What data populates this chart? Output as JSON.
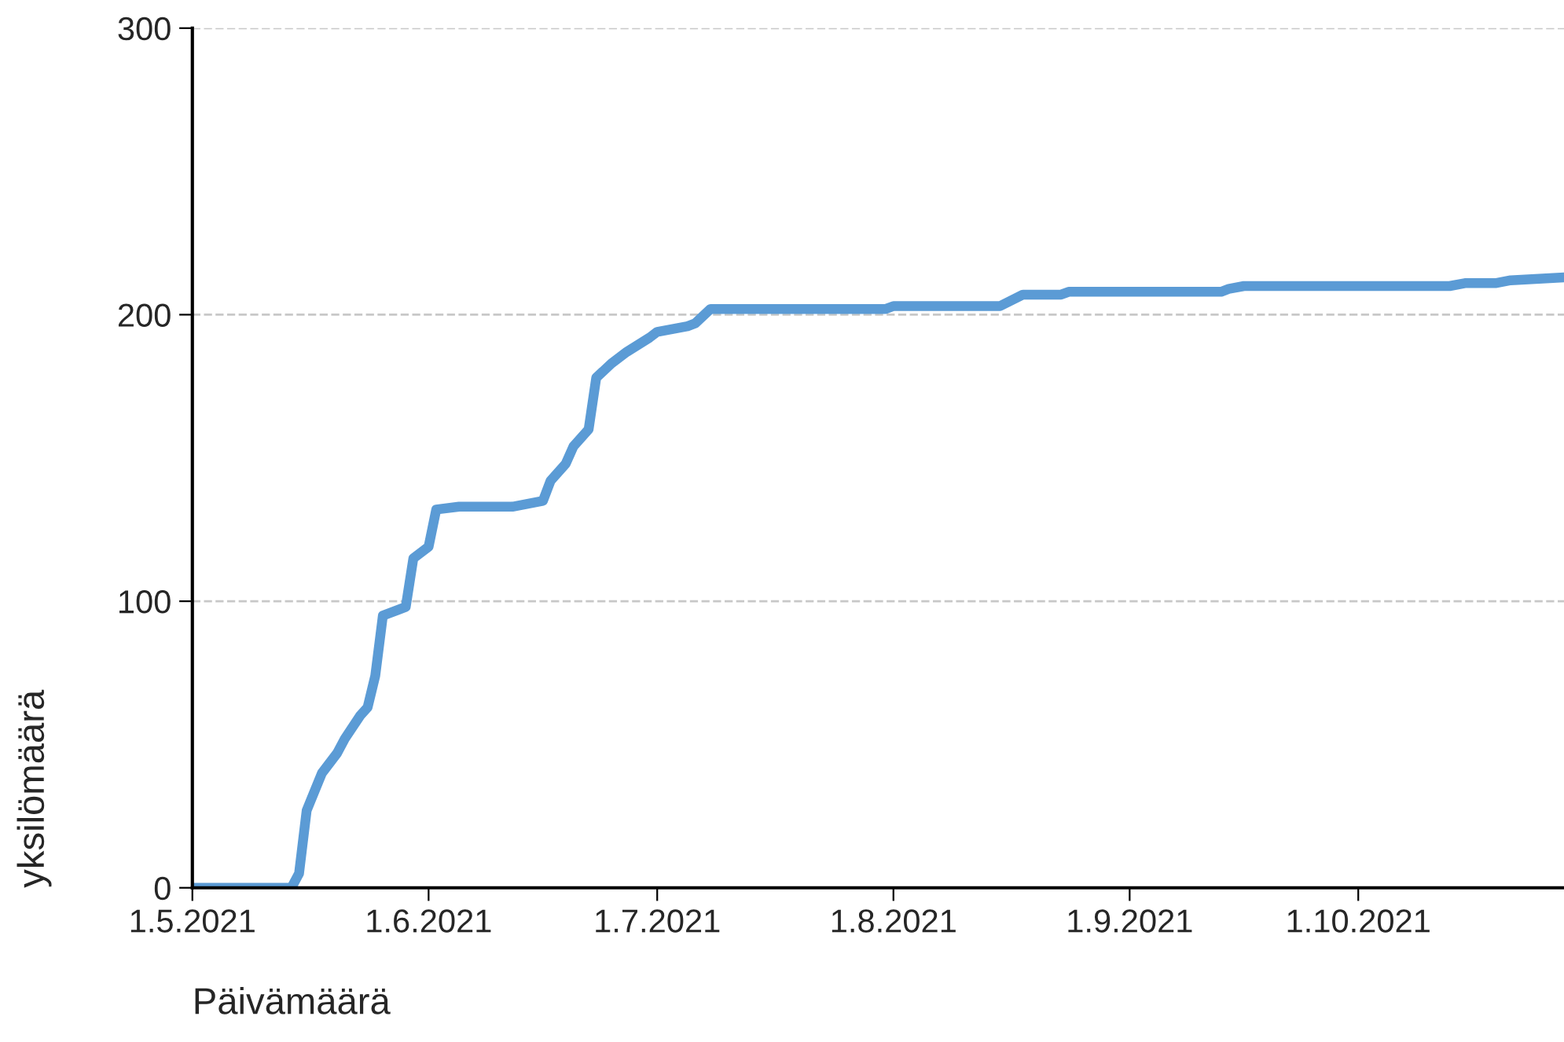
{
  "chart_data": {
    "type": "line",
    "xlabel": "Päivämäärä",
    "ylabel": "yksilömäärä",
    "x": [
      "2021-05-01",
      "2021-05-14",
      "2021-05-15",
      "2021-05-16",
      "2021-05-18",
      "2021-05-20",
      "2021-05-21",
      "2021-05-23",
      "2021-05-24",
      "2021-05-25",
      "2021-05-26",
      "2021-05-29",
      "2021-05-30",
      "2021-06-01",
      "2021-06-02",
      "2021-06-05",
      "2021-06-12",
      "2021-06-14",
      "2021-06-16",
      "2021-06-17",
      "2021-06-19",
      "2021-06-20",
      "2021-06-22",
      "2021-06-23",
      "2021-06-25",
      "2021-06-27",
      "2021-06-30",
      "2021-07-01",
      "2021-07-05",
      "2021-07-06",
      "2021-07-08",
      "2021-07-31",
      "2021-08-01",
      "2021-08-15",
      "2021-08-18",
      "2021-08-23",
      "2021-08-24",
      "2021-09-13",
      "2021-09-14",
      "2021-09-16",
      "2021-10-13",
      "2021-10-15",
      "2021-10-19",
      "2021-10-21",
      "2021-10-28"
    ],
    "series": [
      {
        "color": "#5b9bd5",
        "values": [
          0,
          0,
          5,
          27,
          40,
          47,
          52,
          60,
          63,
          74,
          95,
          98,
          115,
          119,
          132,
          133,
          133,
          134,
          135,
          142,
          148,
          154,
          160,
          178,
          183,
          187,
          192,
          194,
          196,
          197,
          202,
          202,
          203,
          203,
          207,
          207,
          208,
          208,
          209,
          210,
          210,
          211,
          211,
          212,
          213
        ]
      }
    ],
    "xlim": [
      "2021-05-01",
      "2021-10-28"
    ],
    "xticks": [
      {
        "value": "2021-05-01",
        "label": "1.5.2021"
      },
      {
        "value": "2021-06-01",
        "label": "1.6.2021"
      },
      {
        "value": "2021-07-01",
        "label": "1.7.2021"
      },
      {
        "value": "2021-08-01",
        "label": "1.8.2021"
      },
      {
        "value": "2021-09-01",
        "label": "1.9.2021"
      },
      {
        "value": "2021-10-01",
        "label": "1.10.2021"
      }
    ],
    "ylim": [
      0,
      300
    ],
    "yticks": [
      0,
      100,
      200,
      300
    ],
    "grid": "y",
    "line_style": "solid",
    "marker": "none",
    "legend": false
  }
}
